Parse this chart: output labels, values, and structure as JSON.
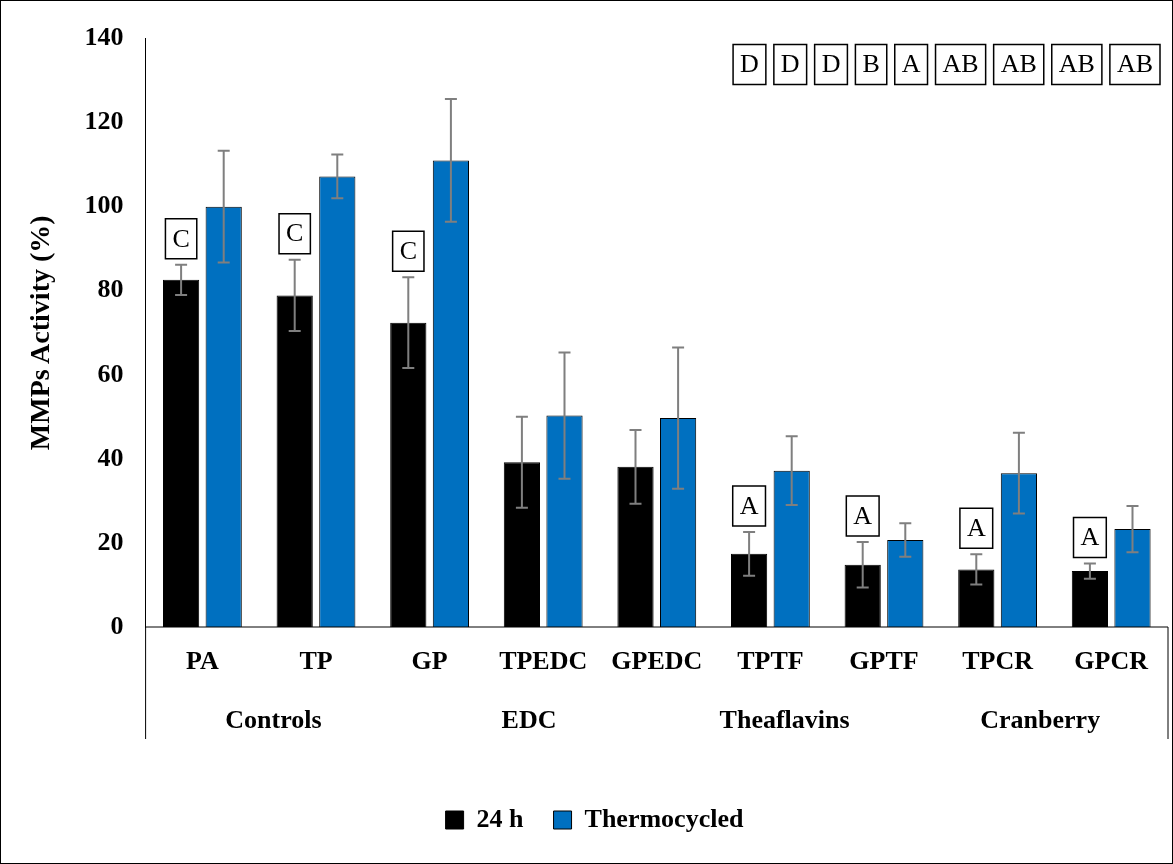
{
  "chart_data": {
    "type": "bar",
    "ylabel": "MMPs Activity (%)",
    "categories": [
      "PA",
      "TP",
      "GP",
      "TPEDC",
      "GPEDC",
      "TPTF",
      "GPTF",
      "TPCR",
      "GPCR"
    ],
    "series": [
      {
        "name": "24 h",
        "color": "#000000",
        "values": [
          82.6,
          78.9,
          72.4,
          39.2,
          38.1,
          17.4,
          14.8,
          13.7,
          13.3
        ],
        "errors": [
          3.6,
          8.5,
          10.8,
          10.8,
          8.8,
          5.2,
          5.4,
          3.6,
          1.8
        ]
      },
      {
        "name": "Thermocycled",
        "color": "#0070c0",
        "values": [
          100,
          107.2,
          111,
          50.3,
          49.7,
          37.2,
          20.7,
          36.6,
          23.3
        ],
        "errors": [
          13.3,
          5.2,
          14.6,
          15,
          16.8,
          8.2,
          4,
          9.6,
          5.5
        ]
      }
    ],
    "ylim": [
      0,
      140
    ],
    "yticks": [
      0,
      20,
      40,
      60,
      80,
      100,
      120,
      140
    ],
    "legend": "bottom",
    "annotations": [
      "Controls",
      "EDC",
      "Theaflavins",
      "Cranberry",
      {
        "text": "C",
        "x": "PA",
        "y": 82.6
      },
      {
        "text": "C",
        "x": "TP",
        "y": 78.9
      },
      {
        "text": "C",
        "x": "GP",
        "y": 72.4
      },
      {
        "text": "A",
        "x": "TPTF",
        "y": 17.4
      },
      {
        "text": "A",
        "x": "GPTF",
        "y": 14.8
      },
      {
        "text": "A",
        "x": "TPCR",
        "y": 13.7
      },
      {
        "text": "A",
        "x": "GPCR",
        "y": 13.3
      },
      "D",
      "D",
      "D",
      "B",
      "A",
      "AB",
      "AB",
      "AB",
      "AB"
    ]
  }
}
